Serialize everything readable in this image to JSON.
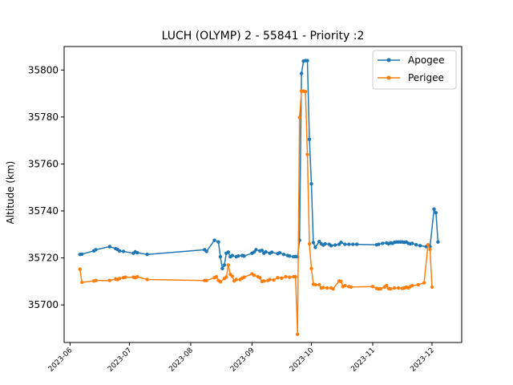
{
  "chart_data": {
    "type": "line",
    "title": "LUCH (OLYMP) 2 - 55841 - Priority :2",
    "xlabel": "",
    "ylabel": "Altitude (km)",
    "x_ticks": [
      "2023-06",
      "2023-07",
      "2023-08",
      "2023-09",
      "2023-10",
      "2023-11",
      "2023-12"
    ],
    "y_ticks": [
      "35700",
      "35720",
      "35740",
      "35760",
      "35780",
      "35800"
    ],
    "ylim": [
      35684,
      35810
    ],
    "xlim": [
      "2023-05-29",
      "2023-12-16"
    ],
    "legend_position": "top-right",
    "grid": false,
    "series": [
      {
        "name": "Apogee",
        "color": "#1f77b4",
        "points": [
          [
            "2023-06-06",
            35721.5
          ],
          [
            "2023-06-07",
            35721.6
          ],
          [
            "2023-06-13",
            35723.0
          ],
          [
            "2023-06-14",
            35723.5
          ],
          [
            "2023-06-21",
            35724.8
          ],
          [
            "2023-06-24",
            35724.0
          ],
          [
            "2023-06-25",
            35723.6
          ],
          [
            "2023-06-26",
            35723.0
          ],
          [
            "2023-06-28",
            35722.8
          ],
          [
            "2023-07-03",
            35722.0
          ],
          [
            "2023-07-04",
            35722.6
          ],
          [
            "2023-07-05",
            35722.2
          ],
          [
            "2023-07-10",
            35721.5
          ],
          [
            "2023-08-08",
            35723.5
          ],
          [
            "2023-08-09",
            35722.8
          ],
          [
            "2023-08-13",
            35727.5
          ],
          [
            "2023-08-15",
            35726.8
          ],
          [
            "2023-08-16",
            35720.5
          ],
          [
            "2023-08-17",
            35715.5
          ],
          [
            "2023-08-18",
            35717.0
          ],
          [
            "2023-08-19",
            35722.0
          ],
          [
            "2023-08-20",
            35722.5
          ],
          [
            "2023-08-21",
            35720.5
          ],
          [
            "2023-08-22",
            35721.0
          ],
          [
            "2023-08-24",
            35720.5
          ],
          [
            "2023-08-25",
            35720.8
          ],
          [
            "2023-08-27",
            35721.0
          ],
          [
            "2023-08-28",
            35720.8
          ],
          [
            "2023-09-01",
            35722.0
          ],
          [
            "2023-09-02",
            35722.5
          ],
          [
            "2023-09-03",
            35723.5
          ],
          [
            "2023-09-05",
            35723.0
          ],
          [
            "2023-09-06",
            35723.2
          ],
          [
            "2023-09-07",
            35722.0
          ],
          [
            "2023-09-08",
            35722.6
          ],
          [
            "2023-09-10",
            35722.0
          ],
          [
            "2023-09-11",
            35722.4
          ],
          [
            "2023-09-14",
            35721.8
          ],
          [
            "2023-09-15",
            35722.2
          ],
          [
            "2023-09-17",
            35721.5
          ],
          [
            "2023-09-19",
            35721.0
          ],
          [
            "2023-09-20",
            35720.8
          ],
          [
            "2023-09-22",
            35720.5
          ],
          [
            "2023-09-23",
            35720.6
          ],
          [
            "2023-09-24",
            35720.5
          ],
          [
            "2023-09-25",
            35727.5
          ],
          [
            "2023-09-26",
            35798.5
          ],
          [
            "2023-09-27",
            35803.8
          ],
          [
            "2023-09-28",
            35804.0
          ],
          [
            "2023-09-29",
            35804.0
          ],
          [
            "2023-09-30",
            35770.5
          ],
          [
            "2023-10-01",
            35751.5
          ],
          [
            "2023-10-02",
            35726.5
          ],
          [
            "2023-10-03",
            35724.5
          ],
          [
            "2023-10-05",
            35727.0
          ],
          [
            "2023-10-06",
            35726.0
          ],
          [
            "2023-10-07",
            35725.5
          ],
          [
            "2023-10-08",
            35726.0
          ],
          [
            "2023-10-10",
            35725.8
          ],
          [
            "2023-10-11",
            35725.2
          ],
          [
            "2023-10-13",
            35725.5
          ],
          [
            "2023-10-15",
            35725.8
          ],
          [
            "2023-10-16",
            35726.6
          ],
          [
            "2023-10-18",
            35725.8
          ],
          [
            "2023-10-20",
            35725.8
          ],
          [
            "2023-10-22",
            35725.8
          ],
          [
            "2023-10-24",
            35725.8
          ],
          [
            "2023-11-03",
            35725.6
          ],
          [
            "2023-11-04",
            35725.8
          ],
          [
            "2023-11-06",
            35726.2
          ],
          [
            "2023-11-08",
            35726.4
          ],
          [
            "2023-11-09",
            35726.0
          ],
          [
            "2023-11-10",
            35726.4
          ],
          [
            "2023-11-11",
            35726.2
          ],
          [
            "2023-11-12",
            35726.6
          ],
          [
            "2023-11-13",
            35726.8
          ],
          [
            "2023-11-14",
            35726.8
          ],
          [
            "2023-11-15",
            35726.8
          ],
          [
            "2023-11-16",
            35726.8
          ],
          [
            "2023-11-17",
            35726.6
          ],
          [
            "2023-11-18",
            35726.8
          ],
          [
            "2023-11-19",
            35726.2
          ],
          [
            "2023-11-20",
            35726.0
          ],
          [
            "2023-11-21",
            35726.2
          ],
          [
            "2023-11-23",
            35725.6
          ],
          [
            "2023-11-25",
            35725.2
          ],
          [
            "2023-11-28",
            35724.8
          ],
          [
            "2023-11-30",
            35724.8
          ],
          [
            "2023-12-02",
            35740.8
          ],
          [
            "2023-12-03",
            35739.2
          ],
          [
            "2023-12-04",
            35726.8
          ]
        ]
      },
      {
        "name": "Perigee",
        "color": "#ff7f0e",
        "points": [
          [
            "2023-06-06",
            35715.2
          ],
          [
            "2023-06-07",
            35709.6
          ],
          [
            "2023-06-13",
            35710.2
          ],
          [
            "2023-06-14",
            35710.4
          ],
          [
            "2023-06-21",
            35710.4
          ],
          [
            "2023-06-24",
            35711.0
          ],
          [
            "2023-06-25",
            35710.8
          ],
          [
            "2023-06-26",
            35711.2
          ],
          [
            "2023-06-28",
            35711.6
          ],
          [
            "2023-06-29",
            35711.8
          ],
          [
            "2023-07-03",
            35711.8
          ],
          [
            "2023-07-04",
            35711.6
          ],
          [
            "2023-07-05",
            35712.0
          ],
          [
            "2023-07-10",
            35710.8
          ],
          [
            "2023-08-08",
            35710.4
          ],
          [
            "2023-08-09",
            35710.4
          ],
          [
            "2023-08-13",
            35711.6
          ],
          [
            "2023-08-14",
            35712.0
          ],
          [
            "2023-08-15",
            35710.4
          ],
          [
            "2023-08-16",
            35709.8
          ],
          [
            "2023-08-18",
            35711.2
          ],
          [
            "2023-08-19",
            35711.8
          ],
          [
            "2023-08-20",
            35717.0
          ],
          [
            "2023-08-21",
            35713.0
          ],
          [
            "2023-08-22",
            35712.2
          ],
          [
            "2023-08-23",
            35710.2
          ],
          [
            "2023-08-24",
            35710.8
          ],
          [
            "2023-08-26",
            35710.8
          ],
          [
            "2023-08-27",
            35711.4
          ],
          [
            "2023-08-28",
            35711.8
          ],
          [
            "2023-09-01",
            35713.2
          ],
          [
            "2023-09-02",
            35712.6
          ],
          [
            "2023-09-04",
            35712.0
          ],
          [
            "2023-09-05",
            35711.6
          ],
          [
            "2023-09-06",
            35710.0
          ],
          [
            "2023-09-07",
            35710.2
          ],
          [
            "2023-09-09",
            35710.4
          ],
          [
            "2023-09-10",
            35710.8
          ],
          [
            "2023-09-12",
            35710.6
          ],
          [
            "2023-09-14",
            35711.6
          ],
          [
            "2023-09-16",
            35711.4
          ],
          [
            "2023-09-18",
            35712.0
          ],
          [
            "2023-09-20",
            35711.8
          ],
          [
            "2023-09-22",
            35712.0
          ],
          [
            "2023-09-23",
            35712.0
          ],
          [
            "2023-09-24",
            35687.5
          ],
          [
            "2023-09-25",
            35779.8
          ],
          [
            "2023-09-26",
            35791.0
          ],
          [
            "2023-09-27",
            35791.0
          ],
          [
            "2023-09-28",
            35790.8
          ],
          [
            "2023-09-29",
            35764.0
          ],
          [
            "2023-09-30",
            35726.0
          ],
          [
            "2023-10-01",
            35715.5
          ],
          [
            "2023-10-02",
            35708.8
          ],
          [
            "2023-10-03",
            35708.6
          ],
          [
            "2023-10-05",
            35708.6
          ],
          [
            "2023-10-06",
            35707.2
          ],
          [
            "2023-10-07",
            35707.4
          ],
          [
            "2023-10-09",
            35707.2
          ],
          [
            "2023-10-11",
            35707.2
          ],
          [
            "2023-10-12",
            35706.8
          ],
          [
            "2023-10-15",
            35710.2
          ],
          [
            "2023-10-16",
            35710.0
          ],
          [
            "2023-10-17",
            35707.8
          ],
          [
            "2023-10-18",
            35708.2
          ],
          [
            "2023-10-20",
            35707.8
          ],
          [
            "2023-10-21",
            35707.6
          ],
          [
            "2023-11-01",
            35707.8
          ],
          [
            "2023-11-03",
            35707.0
          ],
          [
            "2023-11-04",
            35706.8
          ],
          [
            "2023-11-05",
            35706.8
          ],
          [
            "2023-11-07",
            35707.6
          ],
          [
            "2023-11-08",
            35708.2
          ],
          [
            "2023-11-09",
            35707.0
          ],
          [
            "2023-11-10",
            35706.8
          ],
          [
            "2023-11-12",
            35707.2
          ],
          [
            "2023-11-14",
            35707.2
          ],
          [
            "2023-11-16",
            35707.0
          ],
          [
            "2023-11-17",
            35707.2
          ],
          [
            "2023-11-18",
            35707.6
          ],
          [
            "2023-11-19",
            35707.2
          ],
          [
            "2023-11-20",
            35707.8
          ],
          [
            "2023-11-21",
            35708.2
          ],
          [
            "2023-11-24",
            35708.6
          ],
          [
            "2023-11-27",
            35709.4
          ],
          [
            "2023-11-29",
            35725.6
          ],
          [
            "2023-11-30",
            35723.6
          ],
          [
            "2023-12-01",
            35707.6
          ]
        ]
      }
    ]
  }
}
